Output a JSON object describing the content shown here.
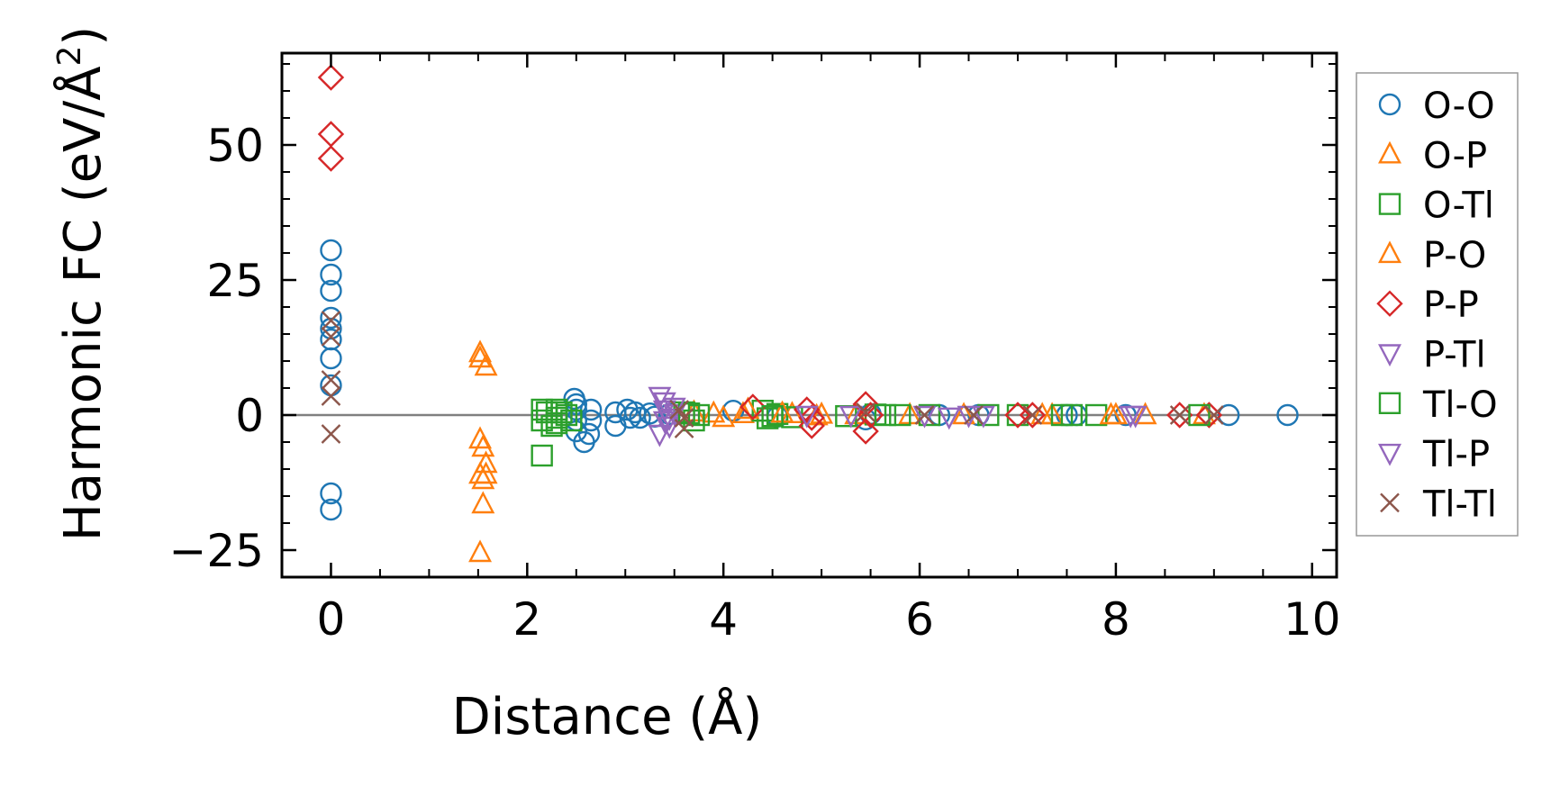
{
  "chart_data": {
    "type": "scatter",
    "xlabel": "Distance (Å)",
    "ylabel_main": "Harmonic FC (eV/Å",
    "ylabel_sup": "2",
    "ylabel_close": ")",
    "xlim": [
      -0.5,
      10.25
    ],
    "ylim": [
      -30,
      67
    ],
    "xticks": [
      0,
      2,
      4,
      6,
      8,
      10
    ],
    "xtick_labels": [
      "0",
      "2",
      "4",
      "6",
      "8",
      "10"
    ],
    "yticks": [
      -25,
      0,
      25,
      50
    ],
    "ytick_labels": [
      "−25",
      "0",
      "25",
      "50"
    ],
    "zero_line": true,
    "grid": false,
    "legend_position": "outside-right",
    "series": [
      {
        "name": "O-O",
        "marker": "circle",
        "color": "#1f77b4",
        "points": [
          [
            0,
            30.5
          ],
          [
            0,
            26
          ],
          [
            0,
            23
          ],
          [
            0,
            18
          ],
          [
            0,
            16
          ],
          [
            0,
            14
          ],
          [
            0,
            10.5
          ],
          [
            0,
            5.5
          ],
          [
            0,
            -14.5
          ],
          [
            0,
            -17.5
          ],
          [
            2.48,
            3
          ],
          [
            2.5,
            2
          ],
          [
            2.5,
            1
          ],
          [
            2.5,
            -1
          ],
          [
            2.5,
            -3
          ],
          [
            2.58,
            -5
          ],
          [
            2.63,
            -3.5
          ],
          [
            2.65,
            1
          ],
          [
            2.65,
            -1
          ],
          [
            2.9,
            0.5
          ],
          [
            2.9,
            -2
          ],
          [
            3.02,
            1
          ],
          [
            3.05,
            -0.5
          ],
          [
            3.1,
            0.5
          ],
          [
            3.15,
            -0.5
          ],
          [
            3.25,
            0.3
          ],
          [
            3.3,
            -0.3
          ],
          [
            3.45,
            0.2
          ],
          [
            4.1,
            0.8
          ],
          [
            4.55,
            -0.3
          ],
          [
            5.45,
            -0.8
          ],
          [
            5.5,
            0.2
          ],
          [
            6.2,
            0
          ],
          [
            6.6,
            0
          ],
          [
            7.5,
            0
          ],
          [
            7.6,
            0
          ],
          [
            8.1,
            0
          ],
          [
            9.15,
            0
          ],
          [
            9.75,
            0
          ]
        ]
      },
      {
        "name": "O-P",
        "marker": "triangle-up",
        "color": "#ff7f0e",
        "points": [
          [
            1.52,
            11.5
          ],
          [
            1.52,
            10.5
          ],
          [
            1.58,
            9
          ],
          [
            1.52,
            -4.5
          ],
          [
            1.55,
            -6
          ],
          [
            1.58,
            -9
          ],
          [
            1.52,
            -11
          ],
          [
            1.55,
            -12
          ],
          [
            1.58,
            -11
          ],
          [
            1.55,
            -16.5
          ],
          [
            1.52,
            -25.5
          ],
          [
            3.7,
            0.5
          ],
          [
            3.9,
            0.3
          ],
          [
            4.0,
            -0.5
          ],
          [
            4.2,
            0.2
          ],
          [
            4.7,
            0.2
          ],
          [
            5.0,
            0.1
          ],
          [
            5.35,
            0
          ],
          [
            5.9,
            0
          ],
          [
            7.35,
            0
          ],
          [
            8.0,
            0
          ],
          [
            8.3,
            0
          ]
        ]
      },
      {
        "name": "O-Tl",
        "marker": "square",
        "color": "#2ca02c",
        "points": [
          [
            2.15,
            -7.5
          ],
          [
            2.15,
            1
          ],
          [
            2.15,
            -1
          ],
          [
            2.2,
            0.5
          ],
          [
            2.25,
            -2
          ],
          [
            2.3,
            1
          ],
          [
            2.3,
            -0.5
          ],
          [
            2.4,
            0
          ],
          [
            2.45,
            -1
          ],
          [
            3.6,
            0.5
          ],
          [
            3.7,
            -1
          ],
          [
            3.75,
            0
          ],
          [
            4.4,
            0.8
          ],
          [
            4.45,
            -0.6
          ],
          [
            4.55,
            0.2
          ],
          [
            4.7,
            -0.4
          ],
          [
            5.25,
            -0.2
          ],
          [
            5.55,
            0.1
          ],
          [
            5.8,
            0
          ],
          [
            6.1,
            0
          ],
          [
            7.0,
            0
          ],
          [
            7.55,
            0
          ],
          [
            7.8,
            0
          ]
        ]
      },
      {
        "name": "P-O",
        "marker": "triangle-up",
        "color": "#ff7f0e",
        "points": [
          [
            4.25,
            1
          ],
          [
            4.6,
            0.3
          ],
          [
            4.95,
            -0.2
          ],
          [
            6.45,
            0
          ],
          [
            7.25,
            0
          ],
          [
            7.95,
            0
          ],
          [
            8.9,
            0
          ]
        ]
      },
      {
        "name": "P-P",
        "marker": "diamond",
        "color": "#d62728",
        "points": [
          [
            0,
            62.5
          ],
          [
            0,
            52
          ],
          [
            0,
            47.5
          ],
          [
            4.3,
            1.5
          ],
          [
            4.85,
            1
          ],
          [
            4.9,
            -0.5
          ],
          [
            4.9,
            -2
          ],
          [
            5.45,
            2
          ],
          [
            5.45,
            -3
          ],
          [
            5.5,
            0
          ],
          [
            7.0,
            0
          ],
          [
            7.15,
            0
          ],
          [
            8.65,
            0
          ],
          [
            8.95,
            0
          ]
        ]
      },
      {
        "name": "P-Tl",
        "marker": "triangle-down",
        "color": "#9467bd",
        "points": [
          [
            3.35,
            3.5
          ],
          [
            3.4,
            2.5
          ],
          [
            3.4,
            1
          ],
          [
            3.45,
            -0.5
          ],
          [
            3.45,
            -2
          ],
          [
            3.35,
            -3.5
          ],
          [
            3.5,
            0.3
          ],
          [
            4.85,
            0
          ],
          [
            6.3,
            -0.3
          ],
          [
            6.5,
            0
          ],
          [
            8.2,
            0
          ]
        ]
      },
      {
        "name": "Tl-O",
        "marker": "square",
        "color": "#2ca02c",
        "points": [
          [
            2.3,
            -1.5
          ],
          [
            2.35,
            0.5
          ],
          [
            3.65,
            0.3
          ],
          [
            4.5,
            -0.2
          ],
          [
            5.65,
            0
          ],
          [
            6.7,
            0
          ],
          [
            7.45,
            0
          ],
          [
            8.85,
            0
          ]
        ]
      },
      {
        "name": "Tl-P",
        "marker": "triangle-down",
        "color": "#9467bd",
        "points": [
          [
            3.4,
            -1
          ],
          [
            3.5,
            1.5
          ],
          [
            5.3,
            0
          ],
          [
            6.05,
            0
          ],
          [
            6.65,
            0
          ],
          [
            8.15,
            0
          ]
        ]
      },
      {
        "name": "Tl-Tl",
        "marker": "x",
        "color": "#8c564b",
        "points": [
          [
            0,
            17.5
          ],
          [
            0,
            14.5
          ],
          [
            0,
            6.5
          ],
          [
            0,
            3.5
          ],
          [
            0,
            -3.5
          ],
          [
            3.55,
            1
          ],
          [
            3.6,
            -0.5
          ],
          [
            3.6,
            -2.5
          ],
          [
            5.45,
            0.5
          ],
          [
            6.05,
            0
          ],
          [
            6.55,
            0
          ],
          [
            7.15,
            0
          ],
          [
            8.65,
            0
          ],
          [
            9.0,
            0
          ]
        ]
      }
    ]
  }
}
